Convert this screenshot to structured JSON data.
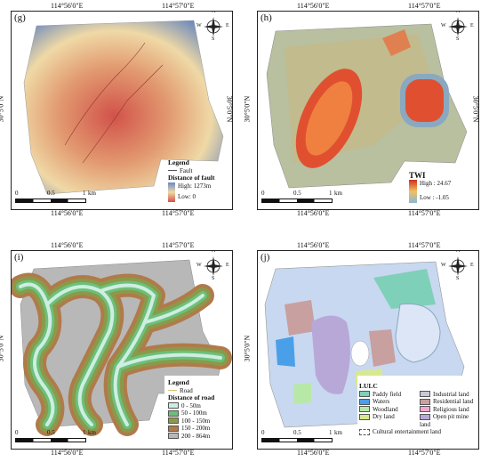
{
  "axes": {
    "lon_left": "114°56'0\"E",
    "lon_right": "114°57'0\"E",
    "lat": "30°5'0\"N"
  },
  "north_arrow": {
    "n": "N",
    "s": "S",
    "e": "E",
    "w": "W"
  },
  "scale_bar": {
    "zero": "0",
    "mid": "0.5",
    "end": "1",
    "unit": "km"
  },
  "panels": {
    "g": {
      "label": "(g)",
      "legend_title": "Legend",
      "fault_label": "Fault",
      "subtitle": "Distance of fault",
      "high": "High: 1273m",
      "low": "Low:  0"
    },
    "h": {
      "label": "(h)",
      "title": "TWI",
      "high": "High : 24.67",
      "low": "Low : -1.05"
    },
    "i": {
      "label": "(i)",
      "legend_title": "Legend",
      "road_label": "Road",
      "subtitle": "Distance of road",
      "classes": [
        {
          "label": "0 - 50m",
          "color": "#cdeee0"
        },
        {
          "label": "50 - 100m",
          "color": "#6cc07a"
        },
        {
          "label": "100 - 150m",
          "color": "#8a9a4a"
        },
        {
          "label": "150 - 200m",
          "color": "#b07a4a"
        },
        {
          "label": "200 - 864m",
          "color": "#b8b8b8"
        }
      ]
    },
    "j": {
      "label": "(j)",
      "legend_title": "LULC",
      "classes": [
        {
          "label": "Paddy field",
          "color": "#7fd0b8"
        },
        {
          "label": "Industrial land",
          "color": "#c8c8d8"
        },
        {
          "label": "Waters",
          "color": "#4aa0e8"
        },
        {
          "label": "Residential land",
          "color": "#c8a0a0"
        },
        {
          "label": "Woodland",
          "color": "#b8e8a8"
        },
        {
          "label": "Religious land",
          "color": "#f0a8d0"
        },
        {
          "label": "Dry land",
          "color": "#d8e890"
        },
        {
          "label": "Open pit mine land",
          "color": "#b8a8d8"
        },
        {
          "label": "Cultural entertainment land",
          "color": "#ffffff"
        }
      ]
    }
  }
}
